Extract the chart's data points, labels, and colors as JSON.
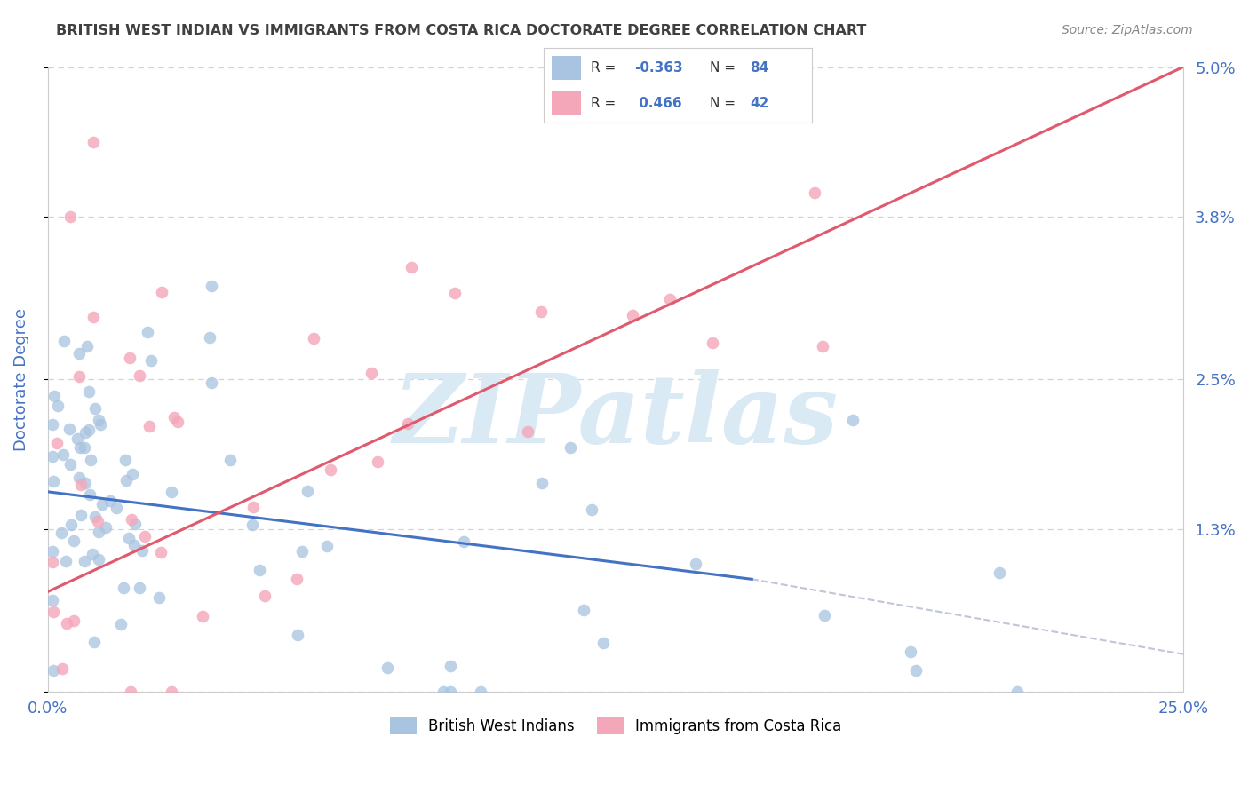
{
  "title": "BRITISH WEST INDIAN VS IMMIGRANTS FROM COSTA RICA DOCTORATE DEGREE CORRELATION CHART",
  "source": "Source: ZipAtlas.com",
  "ylabel": "Doctorate Degree",
  "xlim": [
    0.0,
    0.25
  ],
  "ylim": [
    0.0,
    0.05
  ],
  "yticks": [
    0.0,
    0.013,
    0.025,
    0.038,
    0.05
  ],
  "ytick_labels": [
    "",
    "1.3%",
    "2.5%",
    "3.8%",
    "5.0%"
  ],
  "xticks": [
    0.0,
    0.25
  ],
  "xtick_labels": [
    "0.0%",
    "25.0%"
  ],
  "legend_labels": [
    "British West Indians",
    "Immigrants from Costa Rica"
  ],
  "R_blue": -0.363,
  "N_blue": 84,
  "R_pink": 0.466,
  "N_pink": 42,
  "blue_color": "#a8c4e0",
  "pink_color": "#f4a7b9",
  "blue_line_color": "#4472c4",
  "pink_line_color": "#e05a6e",
  "dashed_line_color": "#b0b8d0",
  "title_color": "#404040",
  "tick_label_color": "#4472c4",
  "grid_color": "#c8c8c8",
  "watermark_color": "#daeaf5",
  "watermark_text": "ZIPatlas",
  "background_color": "#ffffff",
  "seed": 7,
  "blue_line_x": [
    0.0,
    0.155
  ],
  "blue_line_y": [
    0.016,
    0.009
  ],
  "pink_line_x": [
    0.0,
    0.25
  ],
  "pink_line_y": [
    0.008,
    0.05
  ],
  "dash_line_x": [
    0.155,
    0.25
  ],
  "dash_line_y": [
    0.009,
    0.003
  ]
}
